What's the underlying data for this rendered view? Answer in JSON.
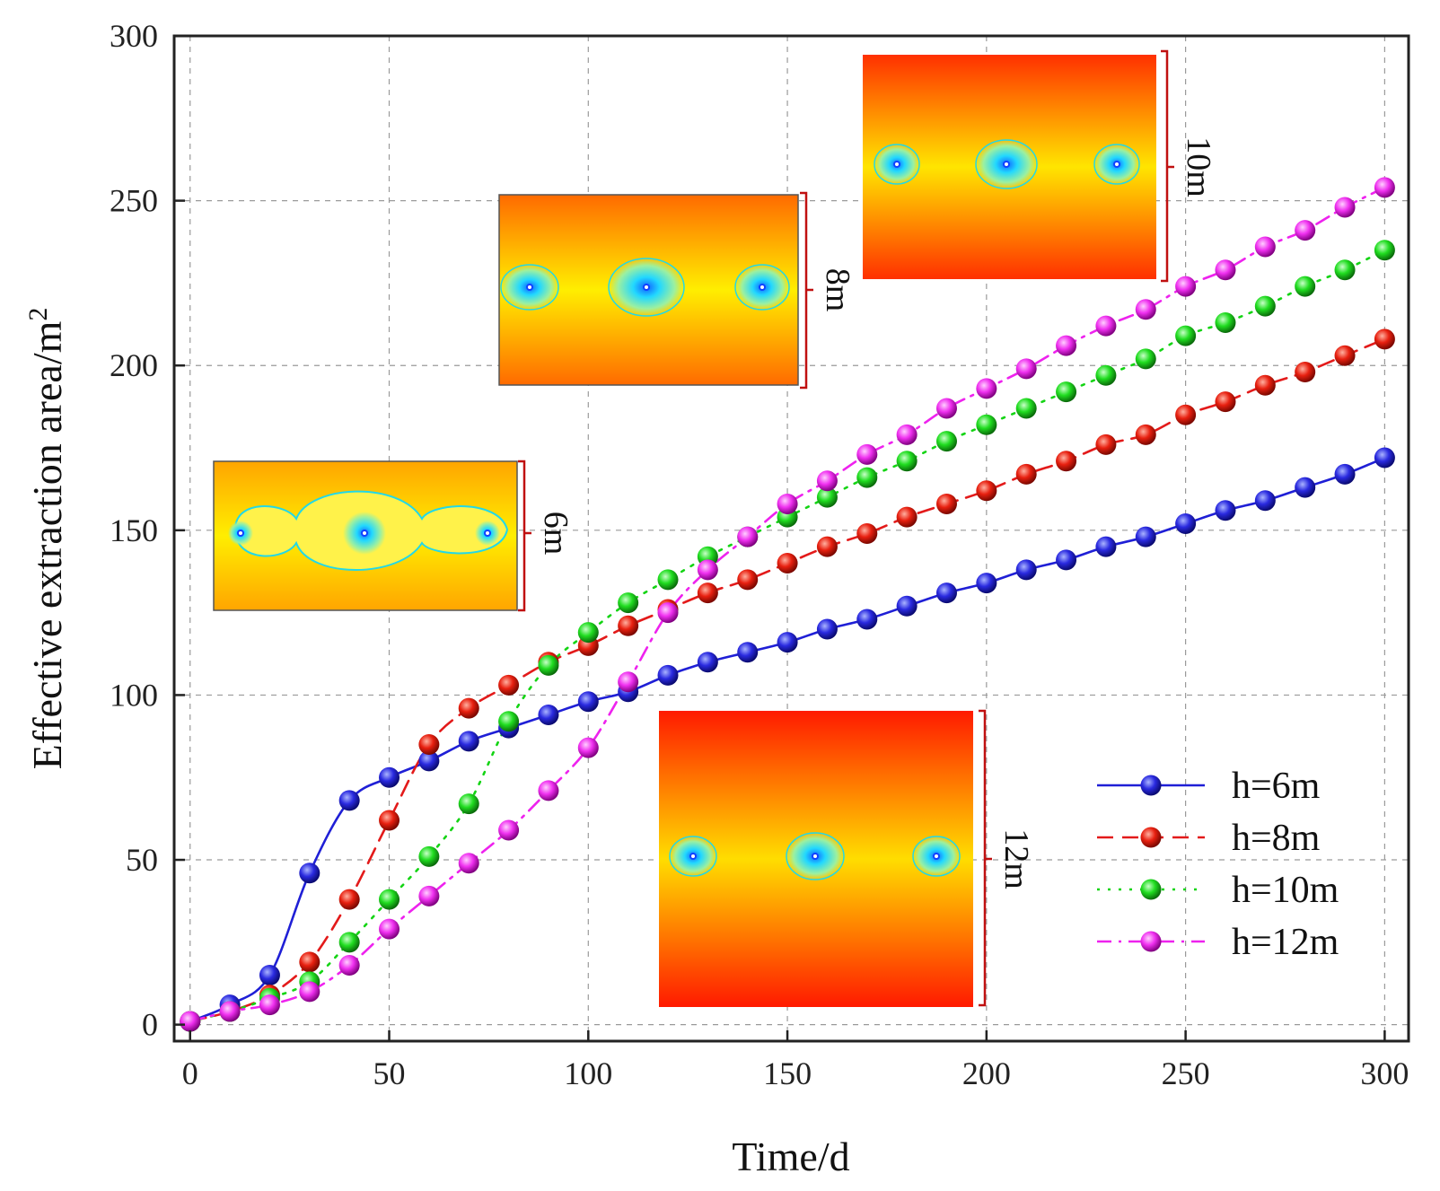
{
  "chart_data": {
    "type": "line",
    "xlabel": "Time/d",
    "ylabel": "Effective extraction area/m",
    "ylabel_sup": "2",
    "xlim": [
      -4,
      306
    ],
    "ylim": [
      -5,
      300
    ],
    "xticks": [
      0,
      50,
      100,
      150,
      200,
      250,
      300
    ],
    "yticks": [
      0,
      50,
      100,
      150,
      200,
      250,
      300
    ],
    "grid": true,
    "legend_position": "bottom-right",
    "x": [
      0,
      10,
      20,
      30,
      40,
      50,
      60,
      70,
      80,
      90,
      100,
      110,
      120,
      130,
      140,
      150,
      160,
      170,
      180,
      190,
      200,
      210,
      220,
      230,
      240,
      250,
      260,
      270,
      280,
      290,
      300
    ],
    "series": [
      {
        "name": "h=6m",
        "color": "#1f1fd6",
        "dash": "solid",
        "values": [
          1,
          6,
          15,
          46,
          68,
          75,
          80,
          86,
          90,
          94,
          98,
          101,
          106,
          110,
          113,
          116,
          120,
          123,
          127,
          131,
          134,
          138,
          141,
          145,
          148,
          152,
          156,
          159,
          163,
          167,
          172
        ]
      },
      {
        "name": "h=8m",
        "color": "#e31a1a",
        "dash": "dashed",
        "values": [
          1,
          4,
          9,
          19,
          38,
          62,
          85,
          96,
          103,
          110,
          115,
          121,
          126,
          131,
          135,
          140,
          145,
          149,
          154,
          158,
          162,
          167,
          171,
          176,
          179,
          185,
          189,
          194,
          198,
          203,
          208
        ]
      },
      {
        "name": "h=10m",
        "color": "#14d414",
        "dash": "dotted",
        "values": [
          1,
          4,
          8,
          13,
          25,
          38,
          51,
          67,
          92,
          109,
          119,
          128,
          135,
          142,
          148,
          154,
          160,
          166,
          171,
          177,
          182,
          187,
          192,
          197,
          202,
          209,
          213,
          218,
          224,
          229,
          235
        ]
      },
      {
        "name": "h=12m",
        "color": "#ee22ee",
        "dash": "dash-dot",
        "values": [
          1,
          4,
          6,
          10,
          18,
          29,
          39,
          49,
          59,
          71,
          84,
          104,
          125,
          138,
          148,
          158,
          165,
          173,
          179,
          187,
          193,
          199,
          206,
          212,
          217,
          224,
          229,
          236,
          241,
          248,
          254
        ]
      }
    ],
    "annotations": [
      {
        "label": "6m"
      },
      {
        "label": "8m"
      },
      {
        "label": "10m"
      },
      {
        "label": "12m"
      }
    ]
  }
}
